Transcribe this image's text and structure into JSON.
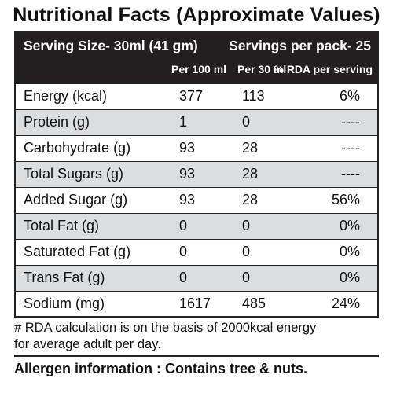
{
  "title": "Nutritional Facts (Approximate Values)",
  "header": {
    "serving_size": "Serving Size-  30ml (41 gm)",
    "servings_per_pack": "Servings per pack- 25",
    "col_per100": "Per 100 ml",
    "col_per30": "Per 30 ml",
    "col_rda": "% RDA per serving"
  },
  "rows": [
    {
      "name": "Energy (kcal)",
      "per100": "377",
      "per30": "113",
      "rda": "6%"
    },
    {
      "name": "Protein (g)",
      "per100": "1",
      "per30": "0",
      "rda": "----"
    },
    {
      "name": "Carbohydrate (g)",
      "per100": "93",
      "per30": "28",
      "rda": "----"
    },
    {
      "name": "Total Sugars (g)",
      "per100": "93",
      "per30": "28",
      "rda": "----"
    },
    {
      "name": "Added Sugar (g)",
      "per100": "93",
      "per30": "28",
      "rda": "56%"
    },
    {
      "name": "Total Fat (g)",
      "per100": "0",
      "per30": "0",
      "rda": "0%"
    },
    {
      "name": "Saturated Fat (g)",
      "per100": "0",
      "per30": "0",
      "rda": "0%"
    },
    {
      "name": "Trans Fat (g)",
      "per100": "0",
      "per30": "0",
      "rda": "0%"
    },
    {
      "name": "Sodium (mg)",
      "per100": "1617",
      "per30": "485",
      "rda": "24%"
    }
  ],
  "footnote": {
    "line1": "# RDA calculation is on the basis of 2000kcal energy",
    "line2": "for average adult per day."
  },
  "allergen": "Allergen information : Contains tree & nuts.",
  "colors": {
    "header_bg": "#231f20",
    "shaded_row": "#dcdde1"
  }
}
